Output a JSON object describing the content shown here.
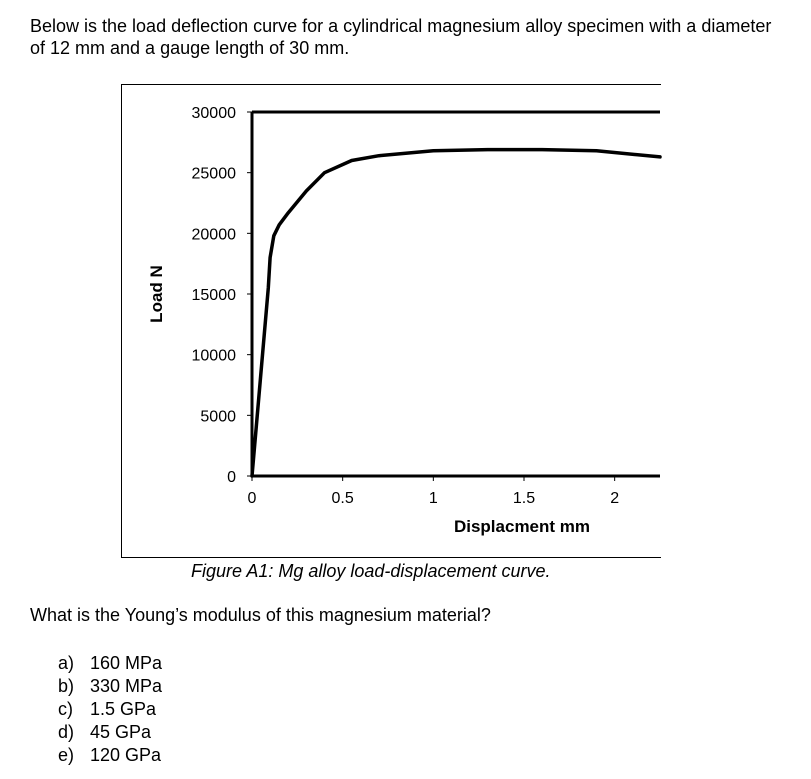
{
  "intro_text": "Below is the load deflection curve for a cylindrical magnesium alloy specimen with a diameter of 12 mm and a gauge length of 30 mm.",
  "chart_data": {
    "type": "line",
    "xlabel": "Displacment mm",
    "ylabel": "Load N",
    "xlim": [
      0,
      2.25
    ],
    "ylim": [
      0,
      30000
    ],
    "x_ticks": [
      "0",
      "0.5",
      "1",
      "1.5",
      "2"
    ],
    "y_ticks": [
      "30000",
      "25000",
      "20000",
      "15000",
      "10000",
      "5000",
      "0"
    ],
    "x_tick_values": [
      0,
      0.5,
      1,
      1.5,
      2
    ],
    "y_tick_values": [
      30000,
      25000,
      20000,
      15000,
      10000,
      5000,
      0
    ],
    "series": [
      {
        "x": [
          0,
          0.09,
          0.1,
          0.12,
          0.15,
          0.2,
          0.3,
          0.4,
          0.55,
          0.7,
          1.0,
          1.3,
          1.6,
          1.9,
          2.25
        ],
        "y": [
          0,
          15500,
          18000,
          19800,
          20700,
          21700,
          23500,
          25000,
          26000,
          26400,
          26800,
          26900,
          26900,
          26800,
          26300
        ]
      }
    ]
  },
  "caption": "Figure A1: Mg alloy load-displacement curve.",
  "question": "What is the Young’s modulus of this magnesium material?",
  "answers": [
    {
      "letter": "a)",
      "text": "160 MPa"
    },
    {
      "letter": "b)",
      "text": "330 MPa"
    },
    {
      "letter": "c)",
      "text": "1.5 GPa"
    },
    {
      "letter": "d)",
      "text": "45 GPa"
    },
    {
      "letter": "e)",
      "text": "120 GPa"
    }
  ]
}
